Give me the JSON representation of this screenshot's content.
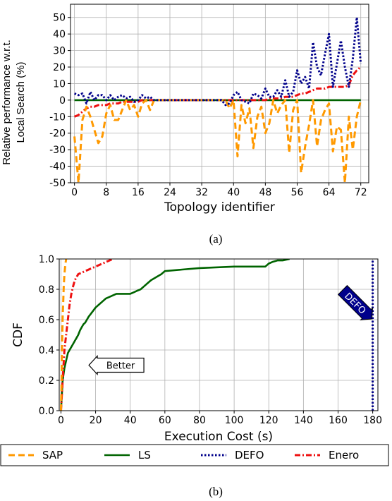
{
  "figure": {
    "caption_a": "(a)",
    "caption_b": "(b)"
  },
  "colors": {
    "SAP": "#ff9900",
    "LS": "#006400",
    "DEFO": "#00008b",
    "Enero": "#ee1111"
  },
  "chart_data": [
    {
      "type": "line",
      "title": "",
      "xlabel": "Topology identifier",
      "ylabel": "Relative performance w.r.t. Local Search (%)",
      "ylabel_lines": [
        "Relative performance w.r.t.",
        "Local Search (%)"
      ],
      "xlim": [
        -1,
        74
      ],
      "ylim": [
        -50,
        58
      ],
      "xticks": [
        0,
        8,
        16,
        24,
        32,
        40,
        48,
        56,
        64,
        72
      ],
      "yticks": [
        -50,
        -40,
        -30,
        -20,
        -10,
        0,
        10,
        20,
        30,
        40,
        50
      ],
      "grid": true,
      "series": [
        {
          "name": "SAP",
          "x": [
            0,
            1,
            2,
            3,
            4,
            5,
            6,
            7,
            8,
            9,
            10,
            11,
            12,
            13,
            14,
            15,
            16,
            17,
            18,
            19,
            20,
            21,
            22,
            23,
            24,
            25,
            26,
            27,
            28,
            29,
            30,
            31,
            32,
            33,
            34,
            35,
            36,
            37,
            38,
            39,
            40,
            41,
            42,
            43,
            44,
            45,
            46,
            47,
            48,
            49,
            50,
            51,
            52,
            53,
            54,
            55,
            56,
            57,
            58,
            59,
            60,
            61,
            62,
            63,
            64,
            65,
            66,
            67,
            68,
            69,
            70,
            71,
            72
          ],
          "y": [
            -22,
            -50,
            -12,
            -4,
            -10,
            -18,
            -26,
            -22,
            -8,
            -3,
            -12,
            -12,
            -6,
            0,
            -6,
            -3,
            -10,
            -2,
            0,
            -6,
            0,
            0,
            0,
            0,
            0,
            0,
            0,
            0,
            0,
            0,
            0,
            0,
            0,
            0,
            0,
            0,
            0,
            0,
            0,
            -5,
            0,
            -34,
            -3,
            -14,
            -5,
            -29,
            -10,
            -4,
            -20,
            -14,
            0,
            -8,
            -3,
            0,
            -32,
            -6,
            0,
            -44,
            -28,
            -15,
            0,
            -28,
            -12,
            -6,
            -2,
            -31,
            -16,
            -18,
            -50,
            -10,
            -30,
            -10,
            0
          ]
        },
        {
          "name": "LS",
          "x": [
            0,
            72
          ],
          "y": [
            0,
            0
          ]
        },
        {
          "name": "DEFO",
          "x": [
            0,
            1,
            2,
            3,
            4,
            5,
            6,
            7,
            8,
            9,
            10,
            11,
            12,
            13,
            14,
            15,
            16,
            17,
            18,
            19,
            20,
            21,
            22,
            23,
            24,
            25,
            26,
            27,
            28,
            29,
            30,
            31,
            32,
            33,
            34,
            35,
            36,
            37,
            38,
            39,
            40,
            41,
            42,
            43,
            44,
            45,
            46,
            47,
            48,
            49,
            50,
            51,
            52,
            53,
            54,
            55,
            56,
            57,
            58,
            59,
            60,
            61,
            62,
            63,
            64,
            65,
            66,
            67,
            68,
            69,
            70,
            71,
            72
          ],
          "y": [
            4,
            3,
            4,
            -2,
            5,
            0,
            3,
            3,
            0,
            3,
            0,
            2,
            3,
            1,
            2,
            -1,
            0,
            3,
            1,
            2,
            0,
            0,
            0,
            0,
            0,
            0,
            0,
            0,
            0,
            0,
            0,
            0,
            0,
            0,
            0,
            0,
            0,
            0,
            -3,
            -2,
            3,
            5,
            0,
            -1,
            -2,
            4,
            3,
            1,
            7,
            2,
            2,
            6,
            2,
            12,
            2,
            5,
            18,
            10,
            14,
            7,
            35,
            20,
            15,
            28,
            40,
            8,
            22,
            36,
            20,
            8,
            25,
            50,
            22
          ]
        },
        {
          "name": "Enero",
          "x": [
            0,
            1,
            2,
            3,
            4,
            5,
            6,
            7,
            8,
            9,
            10,
            11,
            12,
            13,
            14,
            15,
            16,
            17,
            18,
            19,
            20,
            21,
            22,
            23,
            24,
            25,
            26,
            27,
            28,
            29,
            30,
            31,
            32,
            33,
            34,
            35,
            36,
            37,
            38,
            39,
            40,
            41,
            42,
            43,
            44,
            45,
            46,
            47,
            48,
            49,
            50,
            51,
            52,
            53,
            54,
            55,
            56,
            57,
            58,
            59,
            60,
            61,
            62,
            63,
            64,
            65,
            66,
            67,
            68,
            69,
            70,
            71,
            72
          ],
          "y": [
            -10,
            -9,
            -7,
            -5,
            -4,
            -4,
            -3,
            -3,
            -3,
            -2,
            -2,
            -2,
            -1,
            -1,
            -1,
            -1,
            -1,
            0,
            0,
            0,
            0,
            0,
            0,
            0,
            0,
            0,
            0,
            0,
            0,
            0,
            0,
            0,
            0,
            0,
            0,
            0,
            0,
            0,
            0,
            0,
            0,
            0,
            0,
            0,
            0,
            0,
            0,
            0,
            0,
            1,
            1,
            1,
            1,
            2,
            2,
            2,
            3,
            4,
            4,
            5,
            6,
            7,
            7,
            7,
            8,
            8,
            8,
            8,
            8,
            9,
            15,
            18,
            20
          ]
        }
      ]
    },
    {
      "type": "line",
      "title": "",
      "xlabel": "Execution Cost (s)",
      "ylabel": "CDF",
      "xlim": [
        -1,
        183
      ],
      "ylim": [
        0.0,
        1.0
      ],
      "xticks": [
        0,
        20,
        40,
        60,
        80,
        100,
        120,
        140,
        160,
        180
      ],
      "yticks": [
        0.0,
        0.2,
        0.4,
        0.6,
        0.8,
        1.0
      ],
      "ytick_labels": [
        "0.0",
        "0.2",
        "0.4",
        "0.6",
        "0.8",
        "1.0"
      ],
      "grid": true,
      "legend": {
        "placement": "below",
        "entries": [
          "SAP",
          "LS",
          "DEFO",
          "Enero"
        ]
      },
      "annotations": [
        {
          "text": "Better",
          "x": 32,
          "y": 0.3
        },
        {
          "text": "DEFO",
          "x": 171,
          "y": 0.7
        }
      ],
      "series": [
        {
          "name": "SAP",
          "x": [
            0,
            0.3,
            0.5,
            0.8,
            1,
            1.3,
            1.6,
            2,
            2.5,
            3
          ],
          "y": [
            0.0,
            0.15,
            0.35,
            0.5,
            0.62,
            0.72,
            0.82,
            0.9,
            0.96,
            1.0
          ]
        },
        {
          "name": "LS",
          "x": [
            0,
            1,
            2,
            3,
            4,
            5,
            6,
            7,
            8,
            9,
            10,
            11,
            12,
            13,
            14,
            15,
            16,
            18,
            20,
            22,
            24,
            26,
            28,
            30,
            32,
            34,
            36,
            38,
            40,
            42,
            44,
            46,
            48,
            50,
            52,
            55,
            58,
            60,
            70,
            80,
            100,
            110,
            118,
            120,
            122,
            125,
            128,
            132
          ],
          "y": [
            0.0,
            0.2,
            0.28,
            0.33,
            0.38,
            0.4,
            0.42,
            0.44,
            0.46,
            0.48,
            0.5,
            0.53,
            0.55,
            0.57,
            0.58,
            0.6,
            0.62,
            0.65,
            0.68,
            0.7,
            0.72,
            0.74,
            0.75,
            0.76,
            0.77,
            0.77,
            0.77,
            0.77,
            0.77,
            0.78,
            0.79,
            0.8,
            0.82,
            0.84,
            0.86,
            0.88,
            0.9,
            0.92,
            0.93,
            0.94,
            0.95,
            0.95,
            0.95,
            0.97,
            0.98,
            0.99,
            0.99,
            1.0
          ]
        },
        {
          "name": "DEFO",
          "x": [
            180,
            180
          ],
          "y": [
            0.0,
            1.0
          ]
        },
        {
          "name": "Enero",
          "x": [
            0,
            0.5,
            1,
            1.5,
            2,
            3,
            4,
            5,
            6,
            7,
            8,
            9,
            10,
            12,
            14,
            16,
            18,
            20,
            22,
            24,
            26,
            28,
            30
          ],
          "y": [
            0.0,
            0.1,
            0.2,
            0.3,
            0.4,
            0.5,
            0.6,
            0.7,
            0.77,
            0.82,
            0.86,
            0.88,
            0.9,
            0.91,
            0.92,
            0.93,
            0.94,
            0.95,
            0.96,
            0.97,
            0.98,
            0.99,
            1.0
          ]
        }
      ]
    }
  ]
}
